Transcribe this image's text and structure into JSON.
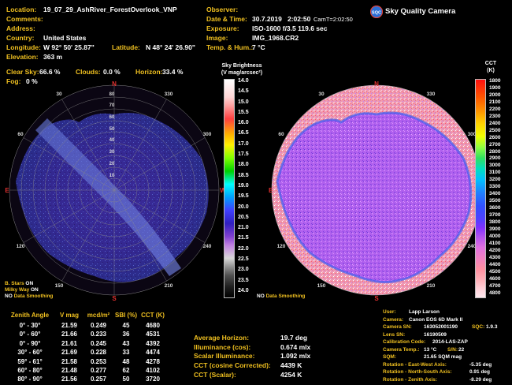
{
  "header_left": {
    "location_label": "Location:",
    "location": "19_07_29_AshRiver_ForestOverlook_VNP",
    "comments_label": "Comments:",
    "address_label": "Address:",
    "country_label": "Country:",
    "country": "United States",
    "longitude_label": "Longitude:",
    "longitude": "W 92° 50' 25.87\"",
    "latitude_label": "Latitude:",
    "latitude": "N 48° 24' 26.90\"",
    "elevation_label": "Elevation:",
    "elevation": "363 m"
  },
  "header_right": {
    "observer_label": "Observer:",
    "datetime_label": "Date & Time:",
    "date": "30.7.2019",
    "time": "2:02:50",
    "camt": "CamT=2:02:50",
    "exposure_label": "Exposure:",
    "exposure": "ISO-1600  f/3.5  119.6 sec",
    "image_label": "Image:",
    "image": "IMG_1968.CR2",
    "temp_label": "Temp. & Hum.:",
    "temp": "7 °C"
  },
  "brand": {
    "name": "Sky Quality Camera",
    "logo_letters": "SQC"
  },
  "sky_stats": {
    "clear_label": "Clear Sky:",
    "clear": "66.6 %",
    "clouds_label": "Clouds:",
    "clouds": "0.0 %",
    "horizon_label": "Horizon:",
    "horizon": "33.4 %",
    "fog_label": "Fog:",
    "fog": "0 %"
  },
  "left_scale": {
    "title1": "Sky Brightness",
    "title2": "(V mag/arcsec²)",
    "ticks": [
      "14.0",
      "14.5",
      "15.0",
      "15.5",
      "16.0",
      "16.5",
      "17.0",
      "17.5",
      "18.0",
      "18.5",
      "19.0",
      "19.5",
      "20.0",
      "20.5",
      "21.0",
      "21.5",
      "22.0",
      "22.5",
      "23.0",
      "23.5",
      "24.0"
    ]
  },
  "right_scale": {
    "title1": "CCT",
    "title2": "(K)",
    "ticks": [
      "1800",
      "1900",
      "2000",
      "2100",
      "2200",
      "2300",
      "2400",
      "2500",
      "2600",
      "2700",
      "2800",
      "2900",
      "3000",
      "3100",
      "3200",
      "3300",
      "3400",
      "3500",
      "3600",
      "3700",
      "3800",
      "3900",
      "4000",
      "4100",
      "4200",
      "4300",
      "4400",
      "4500",
      "4600",
      "4700",
      "4800"
    ]
  },
  "compass": {
    "n": "N",
    "s": "S",
    "e": "E",
    "w": "W"
  },
  "left_polar": {
    "zenith_ticks": [
      "80",
      "70",
      "60",
      "50",
      "40",
      "30",
      "20",
      "10"
    ],
    "az": [
      "30",
      "60",
      "120",
      "150",
      "210",
      "240",
      "300",
      "330"
    ]
  },
  "right_polar": {
    "az": [
      "30",
      "60",
      "120",
      "150",
      "210",
      "240",
      "300",
      "330"
    ]
  },
  "flags": {
    "bstars": "B. Stars",
    "bstars_state": "ON",
    "milkyway": "Milky Way",
    "milkyway_state": "ON",
    "no1": "NO",
    "datasmoothing1": "Data Smoothing",
    "no2": "NO",
    "datasmoothing2": "Data Smoothing"
  },
  "zenith_table": {
    "headers": [
      "Zenith Angle",
      "V mag",
      "mcd/m²",
      "SBI (%)",
      "CCT (K)"
    ],
    "rows": [
      [
        "0° - 30°",
        "21.59",
        "0.249",
        "45",
        "4680"
      ],
      [
        "0° - 60°",
        "21.66",
        "0.233",
        "36",
        "4531"
      ],
      [
        "0° - 90°",
        "21.61",
        "0.245",
        "43",
        "4392"
      ],
      [
        "30° - 60°",
        "21.69",
        "0.228",
        "33",
        "4474"
      ],
      [
        "59° - 61°",
        "21.58",
        "0.253",
        "48",
        "4278"
      ],
      [
        "60° - 80°",
        "21.48",
        "0.277",
        "62",
        "4102"
      ],
      [
        "80° - 90°",
        "21.56",
        "0.257",
        "50",
        "3720"
      ]
    ]
  },
  "summary": {
    "rows": [
      [
        "Average Horizon:",
        "19.7 deg"
      ],
      [
        "Illuminance (cos):",
        "0.674 mlx"
      ],
      [
        "Scalar Illuminance:",
        "1.092 mlx"
      ],
      [
        "CCT (cosine Corrected):",
        "4439 K"
      ],
      [
        "CCT (Scalar):",
        "4254 K"
      ]
    ]
  },
  "camera_info": {
    "user_label": "User:",
    "user": "Lapp Larson",
    "camera_label": "Camera:",
    "camera": "Canon EOS 6D Mark II",
    "camsn_label": "Camera SN:",
    "camsn": "163052001190",
    "sqc_label": "SQC:",
    "sqc": "1.9.3",
    "lenssn_label": "Lens SN:",
    "lenssn": "16190509",
    "calib_label": "Calibration Code:",
    "calib": "2014-LAS-ZAP",
    "camtemp_label": "Camera Temp.:",
    "camtemp": "13 °C",
    "sn_label": "S/N:",
    "sn": "22",
    "sqm_label": "SQM:",
    "sqm": "21.65 SQM mag",
    "rot_ew_label": "Rotation - East-West Axis:",
    "rot_ew": "-5.35 deg",
    "rot_ns_label": "Rotation - North-South Axis:",
    "rot_ns": "0.91 deg",
    "rot_z_label": "Rotation - Zenith Axis:",
    "rot_z": "-8.29 deg"
  }
}
